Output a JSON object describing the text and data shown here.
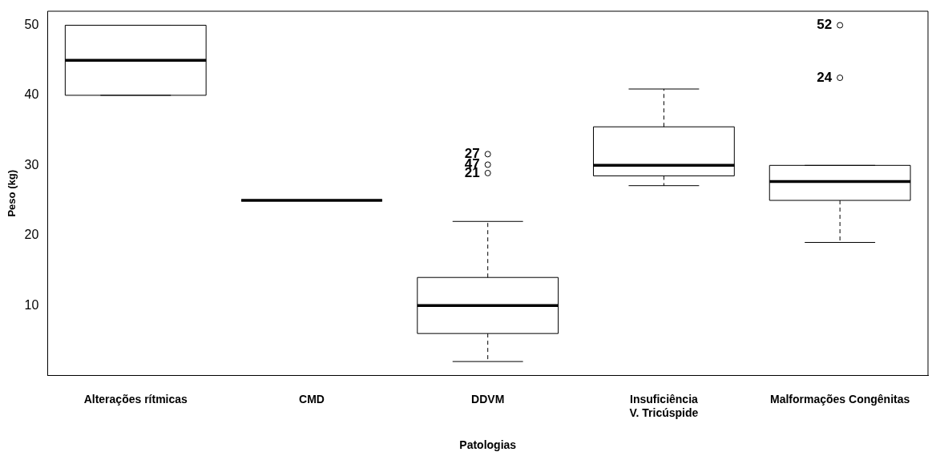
{
  "chart_data": {
    "type": "box",
    "xlabel": "Patologias",
    "ylabel": "Peso (kg)",
    "categories": [
      "Alterações rítmicas",
      "CMD",
      "DDVM",
      "Insuficiência\nV. Tricúspide",
      "Malformações Congênitas"
    ],
    "boxes": [
      {
        "low": 40,
        "q1": 40,
        "median": 45,
        "q3": 50,
        "high": 50
      },
      {
        "low": 25,
        "q1": 25,
        "median": 25,
        "q3": 25,
        "high": 25
      },
      {
        "low": 2,
        "q1": 6,
        "median": 10,
        "q3": 14,
        "high": 22,
        "outliers": [
          31.6,
          30.1,
          28.9
        ]
      },
      {
        "low": 27.1,
        "q1": 28.5,
        "median": 30,
        "q3": 35.5,
        "high": 40.9
      },
      {
        "low": 19,
        "q1": 25,
        "median": 27.7,
        "q3": 30,
        "high": 30,
        "outliers": [
          50,
          42.5
        ]
      }
    ],
    "ylim": [
      0,
      52
    ],
    "yticks": [
      10,
      20,
      30,
      40,
      50
    ],
    "grid": false,
    "legend": false,
    "annotations": [
      "27",
      "47",
      "21",
      "52",
      "24"
    ]
  }
}
